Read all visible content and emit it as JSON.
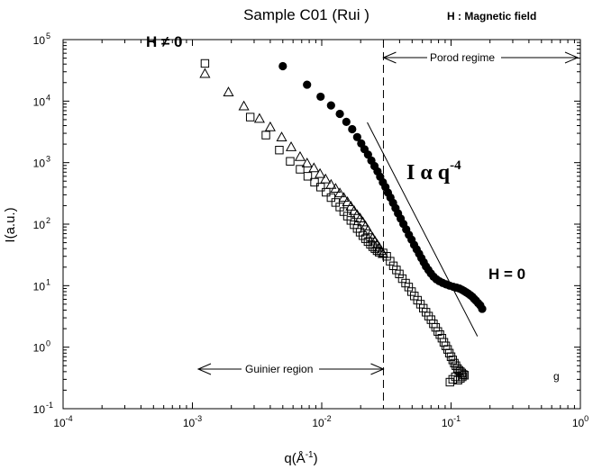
{
  "chart_data": {
    "type": "scatter",
    "title": "Sample C01 (Rui )",
    "legend_note": "H : Magnetic field",
    "xlabel": "q(Å",
    "xlabel_sup": "-1",
    "xlabel_close": ")",
    "ylabel": "I(a.u.)",
    "x_scale": "log",
    "y_scale": "log",
    "xlim": [
      0.0001,
      1
    ],
    "ylim": [
      0.1,
      100000
    ],
    "x_ticks": [
      {
        "value": 0.0001,
        "base": "10",
        "exp": "-4"
      },
      {
        "value": 0.001,
        "base": "10",
        "exp": "-3"
      },
      {
        "value": 0.01,
        "base": "10",
        "exp": "-2"
      },
      {
        "value": 0.1,
        "base": "10",
        "exp": "-1"
      },
      {
        "value": 1,
        "base": "10",
        "exp": "0"
      }
    ],
    "y_ticks": [
      {
        "value": 0.1,
        "base": "10",
        "exp": "-1"
      },
      {
        "value": 1,
        "base": "10",
        "exp": "0"
      },
      {
        "value": 10,
        "base": "10",
        "exp": "1"
      },
      {
        "value": 100,
        "base": "10",
        "exp": "2"
      },
      {
        "value": 1000,
        "base": "10",
        "exp": "3"
      },
      {
        "value": 10000,
        "base": "10",
        "exp": "4"
      },
      {
        "value": 100000,
        "base": "10",
        "exp": "5"
      }
    ],
    "grid": false,
    "series": [
      {
        "marker": "filled-circle",
        "points": [
          [
            0.005,
            37000
          ],
          [
            0.0077,
            18500
          ],
          [
            0.0098,
            11800
          ],
          [
            0.0118,
            8500
          ],
          [
            0.0138,
            6200
          ],
          [
            0.0155,
            4600
          ],
          [
            0.0172,
            3500
          ],
          [
            0.0188,
            2600
          ],
          [
            0.0202,
            2050
          ],
          [
            0.0214,
            1650
          ],
          [
            0.0228,
            1350
          ],
          [
            0.0242,
            1080
          ],
          [
            0.0256,
            880
          ],
          [
            0.027,
            720
          ],
          [
            0.0283,
            590
          ],
          [
            0.0297,
            480
          ],
          [
            0.0311,
            400
          ],
          [
            0.0325,
            325
          ],
          [
            0.034,
            270
          ],
          [
            0.0356,
            222
          ],
          [
            0.0372,
            182
          ],
          [
            0.0389,
            150
          ],
          [
            0.0408,
            123
          ],
          [
            0.0428,
            101
          ],
          [
            0.045,
            82
          ],
          [
            0.0472,
            67
          ],
          [
            0.0495,
            56
          ],
          [
            0.0518,
            46
          ],
          [
            0.0542,
            39
          ],
          [
            0.0566,
            33
          ],
          [
            0.059,
            28
          ],
          [
            0.0615,
            24
          ],
          [
            0.064,
            20.5
          ],
          [
            0.0668,
            18
          ],
          [
            0.0698,
            15.8
          ],
          [
            0.0732,
            14
          ],
          [
            0.077,
            12.7
          ],
          [
            0.0812,
            11.8
          ],
          [
            0.086,
            11.1
          ],
          [
            0.0915,
            10.5
          ],
          [
            0.0975,
            10.0
          ],
          [
            0.104,
            9.6
          ],
          [
            0.11,
            9.3
          ],
          [
            0.116,
            9.0
          ],
          [
            0.121,
            8.6
          ],
          [
            0.126,
            8.2
          ],
          [
            0.131,
            7.8
          ],
          [
            0.136,
            7.4
          ],
          [
            0.141,
            7.0
          ],
          [
            0.146,
            6.6
          ],
          [
            0.151,
            6.1
          ],
          [
            0.156,
            5.7
          ],
          [
            0.162,
            5.2
          ],
          [
            0.168,
            4.8
          ],
          [
            0.174,
            4.2
          ]
        ]
      },
      {
        "marker": "open-triangle",
        "points": [
          [
            0.00125,
            28000
          ],
          [
            0.0019,
            14000
          ],
          [
            0.0025,
            8300
          ],
          [
            0.0033,
            5200
          ],
          [
            0.004,
            3800
          ],
          [
            0.0049,
            2600
          ],
          [
            0.0058,
            1800
          ],
          [
            0.0068,
            1250
          ],
          [
            0.0077,
            980
          ],
          [
            0.0087,
            820
          ],
          [
            0.0097,
            660
          ],
          [
            0.0107,
            540
          ],
          [
            0.0118,
            440
          ],
          [
            0.0128,
            380
          ],
          [
            0.0138,
            320
          ],
          [
            0.0148,
            270
          ],
          [
            0.0158,
            230
          ],
          [
            0.0168,
            195
          ],
          [
            0.0178,
            165
          ],
          [
            0.0188,
            142
          ],
          [
            0.0198,
            125
          ],
          [
            0.0208,
            108
          ],
          [
            0.0218,
            93
          ],
          [
            0.0228,
            80
          ],
          [
            0.0238,
            68
          ],
          [
            0.0248,
            60
          ],
          [
            0.0258,
            53
          ],
          [
            0.0268,
            47
          ],
          [
            0.0278,
            42
          ],
          [
            0.0288,
            37
          ],
          [
            0.0298,
            33
          ]
        ]
      },
      {
        "marker": "open-square",
        "points": [
          [
            0.00125,
            41000
          ],
          [
            0.0028,
            5500
          ],
          [
            0.0037,
            2800
          ],
          [
            0.0047,
            1600
          ],
          [
            0.0057,
            1050
          ],
          [
            0.0068,
            780
          ],
          [
            0.0078,
            600
          ],
          [
            0.0088,
            480
          ],
          [
            0.0098,
            400
          ],
          [
            0.0108,
            330
          ],
          [
            0.0118,
            270
          ],
          [
            0.0128,
            225
          ],
          [
            0.0138,
            190
          ],
          [
            0.0148,
            160
          ],
          [
            0.0158,
            135
          ],
          [
            0.0168,
            115
          ],
          [
            0.0178,
            98
          ],
          [
            0.0188,
            85
          ],
          [
            0.0198,
            74
          ],
          [
            0.0208,
            65
          ],
          [
            0.0218,
            58
          ],
          [
            0.0228,
            52
          ],
          [
            0.0238,
            47
          ],
          [
            0.0248,
            43
          ],
          [
            0.0258,
            40
          ],
          [
            0.0268,
            37
          ],
          [
            0.0278,
            35
          ],
          [
            0.0298,
            34
          ],
          [
            0.0318,
            30
          ],
          [
            0.0338,
            25
          ],
          [
            0.0358,
            21
          ],
          [
            0.0378,
            18
          ],
          [
            0.0398,
            15.5
          ],
          [
            0.042,
            13
          ],
          [
            0.0445,
            11
          ],
          [
            0.047,
            9.5
          ],
          [
            0.0495,
            8
          ],
          [
            0.052,
            6.8
          ],
          [
            0.055,
            5.8
          ],
          [
            0.058,
            5
          ],
          [
            0.061,
            4.3
          ],
          [
            0.064,
            3.7
          ],
          [
            0.067,
            3.2
          ],
          [
            0.07,
            2.8
          ],
          [
            0.073,
            2.4
          ],
          [
            0.076,
            2.1
          ],
          [
            0.079,
            1.8
          ],
          [
            0.082,
            1.6
          ],
          [
            0.085,
            1.4
          ],
          [
            0.088,
            1.2
          ],
          [
            0.091,
            1.05
          ],
          [
            0.094,
            0.92
          ],
          [
            0.097,
            0.8
          ],
          [
            0.1,
            0.7
          ],
          [
            0.103,
            0.62
          ],
          [
            0.106,
            0.55
          ],
          [
            0.109,
            0.5
          ],
          [
            0.112,
            0.45
          ],
          [
            0.115,
            0.42
          ],
          [
            0.118,
            0.4
          ],
          [
            0.121,
            0.38
          ],
          [
            0.124,
            0.36
          ],
          [
            0.127,
            0.35
          ],
          [
            0.098,
            0.27
          ],
          [
            0.103,
            0.3
          ],
          [
            0.108,
            0.33
          ],
          [
            0.113,
            0.29
          ],
          [
            0.118,
            0.31
          ],
          [
            0.122,
            0.33
          ]
        ]
      }
    ],
    "reference_line": {
      "label_main": "I α q",
      "label_exp": "-4",
      "from": [
        0.0225,
        4500
      ],
      "to": [
        0.16,
        1.5
      ]
    },
    "divider_q": 0.03,
    "annotations": {
      "h_not_zero": "H ≠ 0",
      "h_zero": "H = 0",
      "porod": "Porod regime",
      "guinier": "Guinier region",
      "corner": "g"
    }
  }
}
